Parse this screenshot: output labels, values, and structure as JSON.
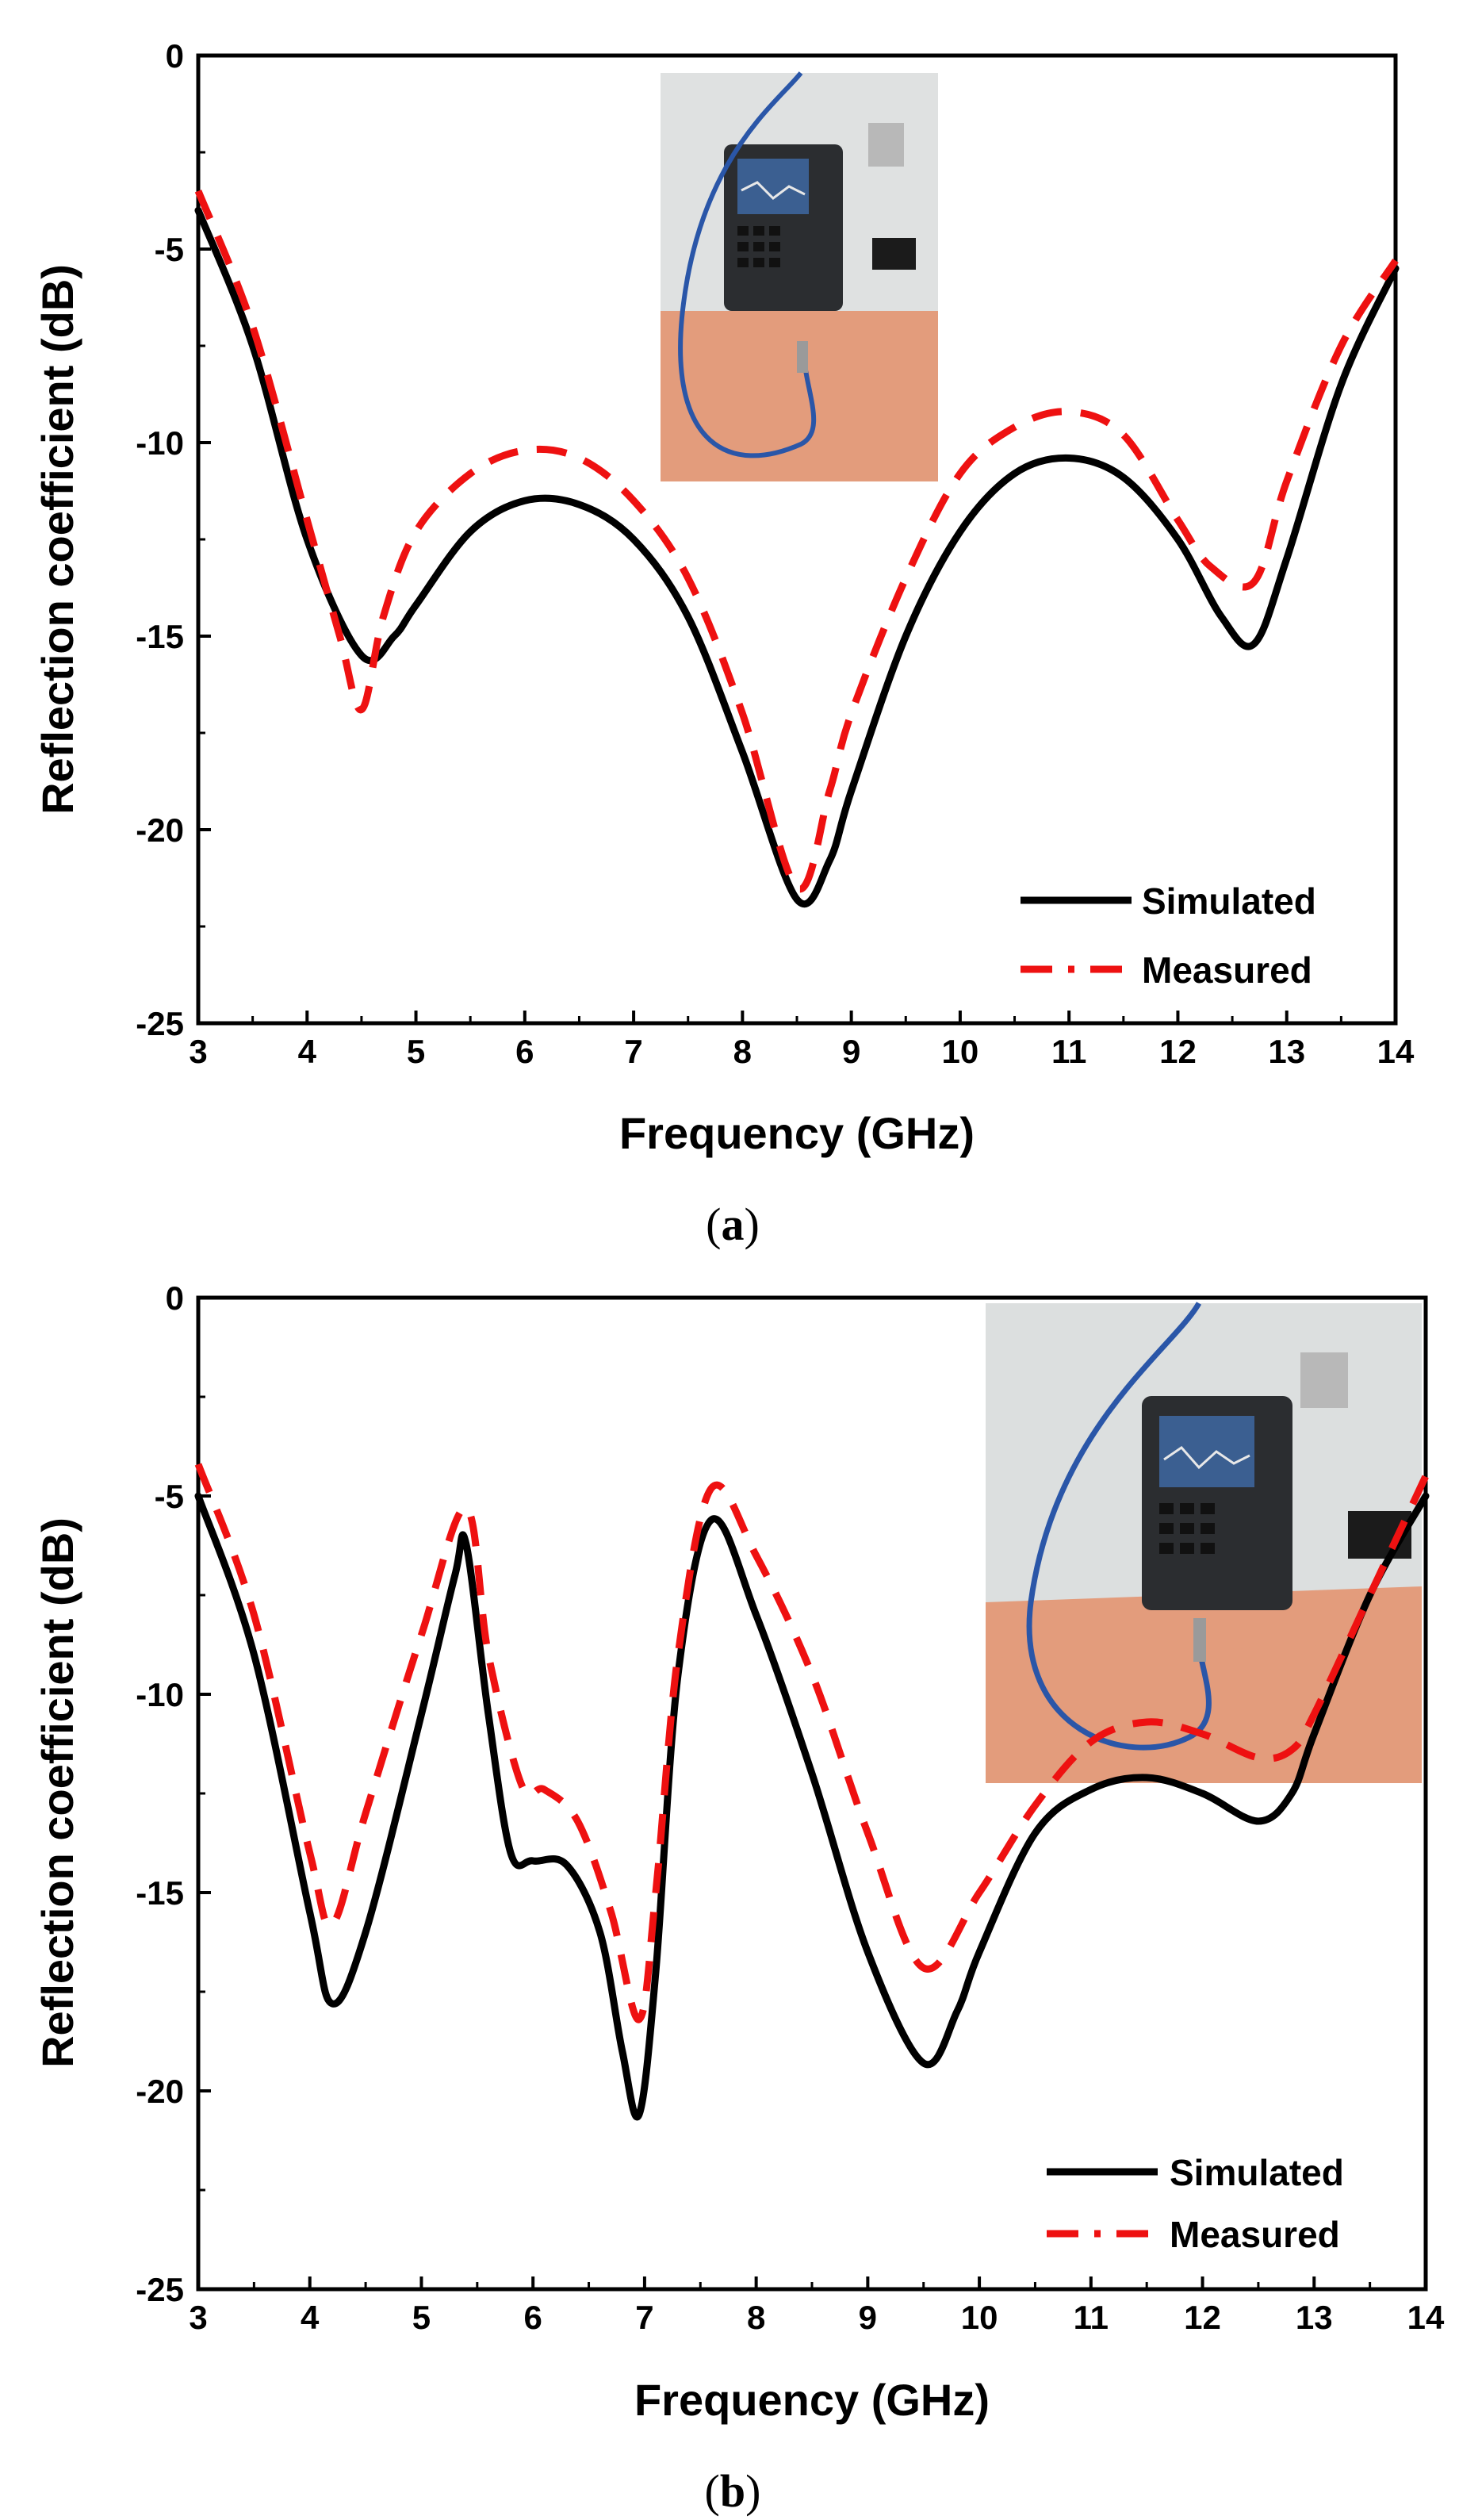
{
  "colors": {
    "simulated": "#000000",
    "measured": "#ee1111",
    "axis": "#000000",
    "photo_board": "#e39c7c",
    "photo_wall": "#cfd3d3",
    "photo_device": "#2b2d30",
    "photo_screen": "#3b5f91",
    "photo_cable": "#2a56a8"
  },
  "chart_data": [
    {
      "id": "a",
      "type": "line",
      "caption_letter": "a",
      "xlabel": "Frequency (GHz)",
      "ylabel": "Reflection coefficient (dB)",
      "xlim": [
        3,
        14
      ],
      "ylim": [
        -25,
        0
      ],
      "xticks": [
        "3",
        "4",
        "5",
        "6",
        "7",
        "8",
        "9",
        "10",
        "11",
        "12",
        "13",
        "14"
      ],
      "yticks": [
        "0",
        "-5",
        "-10",
        "-15",
        "-20",
        "-25"
      ],
      "legend": {
        "position": "bottom-right",
        "entries": [
          "Simulated",
          "Measured"
        ]
      },
      "inset_photo": "VNA measurement setup (top-center)",
      "series": [
        {
          "name": "Simulated",
          "style": "solid",
          "points": [
            [
              3,
              -4.0
            ],
            [
              3.5,
              -7.5
            ],
            [
              4,
              -12.5
            ],
            [
              4.5,
              -15.5
            ],
            [
              4.8,
              -15.0
            ],
            [
              5,
              -14.2
            ],
            [
              5.5,
              -12.3
            ],
            [
              6,
              -11.5
            ],
            [
              6.5,
              -11.6
            ],
            [
              7,
              -12.5
            ],
            [
              7.5,
              -14.5
            ],
            [
              8,
              -18.0
            ],
            [
              8.5,
              -21.8
            ],
            [
              8.8,
              -20.8
            ],
            [
              9,
              -19.0
            ],
            [
              9.5,
              -15.0
            ],
            [
              10,
              -12.3
            ],
            [
              10.5,
              -10.8
            ],
            [
              11,
              -10.4
            ],
            [
              11.5,
              -10.9
            ],
            [
              12,
              -12.5
            ],
            [
              12.4,
              -14.5
            ],
            [
              12.7,
              -15.2
            ],
            [
              13,
              -13.0
            ],
            [
              13.5,
              -8.5
            ],
            [
              14,
              -5.5
            ]
          ]
        },
        {
          "name": "Measured",
          "style": "dashed",
          "points": [
            [
              3,
              -3.5
            ],
            [
              3.5,
              -7.0
            ],
            [
              4,
              -12.0
            ],
            [
              4.3,
              -15.0
            ],
            [
              4.5,
              -16.9
            ],
            [
              4.7,
              -14.5
            ],
            [
              5,
              -12.3
            ],
            [
              5.5,
              -10.8
            ],
            [
              6,
              -10.2
            ],
            [
              6.5,
              -10.4
            ],
            [
              7,
              -11.5
            ],
            [
              7.5,
              -13.5
            ],
            [
              8,
              -17.0
            ],
            [
              8.5,
              -21.5
            ],
            [
              8.8,
              -19.0
            ],
            [
              9,
              -17.0
            ],
            [
              9.5,
              -13.5
            ],
            [
              10,
              -10.8
            ],
            [
              10.5,
              -9.6
            ],
            [
              11,
              -9.2
            ],
            [
              11.5,
              -9.8
            ],
            [
              12,
              -12.0
            ],
            [
              12.3,
              -13.2
            ],
            [
              12.7,
              -13.6
            ],
            [
              13,
              -11.0
            ],
            [
              13.5,
              -7.5
            ],
            [
              14,
              -5.3
            ]
          ]
        }
      ]
    },
    {
      "id": "b",
      "type": "line",
      "caption_letter": "b",
      "xlabel": "Frequency (GHz)",
      "ylabel": "Reflection coefficient (dB)",
      "xlim": [
        3,
        14
      ],
      "ylim": [
        -25,
        0
      ],
      "xticks": [
        "3",
        "4",
        "5",
        "6",
        "7",
        "8",
        "9",
        "10",
        "11",
        "12",
        "13",
        "14"
      ],
      "yticks": [
        "0",
        "-5",
        "-10",
        "-15",
        "-20",
        "-25"
      ],
      "legend": {
        "position": "bottom-right",
        "entries": [
          "Simulated",
          "Measured"
        ]
      },
      "inset_photo": "VNA measurement setup (top-right)",
      "series": [
        {
          "name": "Simulated",
          "style": "solid",
          "points": [
            [
              3,
              -5.0
            ],
            [
              3.5,
              -9.0
            ],
            [
              4,
              -15.5
            ],
            [
              4.2,
              -17.8
            ],
            [
              4.5,
              -16.0
            ],
            [
              5,
              -10.5
            ],
            [
              5.3,
              -7.0
            ],
            [
              5.4,
              -6.2
            ],
            [
              5.6,
              -10.5
            ],
            [
              5.8,
              -14.0
            ],
            [
              6,
              -14.2
            ],
            [
              6.3,
              -14.3
            ],
            [
              6.6,
              -16.0
            ],
            [
              6.8,
              -19.0
            ],
            [
              6.95,
              -20.6
            ],
            [
              7.1,
              -17.0
            ],
            [
              7.3,
              -9.5
            ],
            [
              7.6,
              -5.6
            ],
            [
              8,
              -8.0
            ],
            [
              8.5,
              -12.0
            ],
            [
              9,
              -16.5
            ],
            [
              9.5,
              -19.3
            ],
            [
              9.8,
              -18.0
            ],
            [
              10,
              -16.5
            ],
            [
              10.5,
              -13.5
            ],
            [
              11,
              -12.4
            ],
            [
              11.5,
              -12.1
            ],
            [
              12,
              -12.5
            ],
            [
              12.5,
              -13.2
            ],
            [
              12.8,
              -12.5
            ],
            [
              13,
              -11.0
            ],
            [
              13.5,
              -7.5
            ],
            [
              14,
              -5.0
            ]
          ]
        },
        {
          "name": "Measured",
          "style": "dashed",
          "points": [
            [
              3,
              -4.2
            ],
            [
              3.5,
              -8.0
            ],
            [
              4,
              -14.0
            ],
            [
              4.2,
              -15.8
            ],
            [
              4.5,
              -13.0
            ],
            [
              5,
              -8.5
            ],
            [
              5.4,
              -5.3
            ],
            [
              5.6,
              -9.0
            ],
            [
              5.9,
              -12.3
            ],
            [
              6.1,
              -12.4
            ],
            [
              6.4,
              -13.2
            ],
            [
              6.7,
              -15.5
            ],
            [
              6.95,
              -18.2
            ],
            [
              7.1,
              -15.0
            ],
            [
              7.3,
              -9.0
            ],
            [
              7.6,
              -4.8
            ],
            [
              8,
              -6.5
            ],
            [
              8.5,
              -9.5
            ],
            [
              9,
              -13.5
            ],
            [
              9.5,
              -16.9
            ],
            [
              10,
              -15.0
            ],
            [
              10.5,
              -12.8
            ],
            [
              11,
              -11.2
            ],
            [
              11.5,
              -10.7
            ],
            [
              12,
              -11.0
            ],
            [
              12.5,
              -11.6
            ],
            [
              12.8,
              -11.4
            ],
            [
              13,
              -10.5
            ],
            [
              13.5,
              -7.5
            ],
            [
              14,
              -4.5
            ]
          ]
        }
      ]
    }
  ]
}
